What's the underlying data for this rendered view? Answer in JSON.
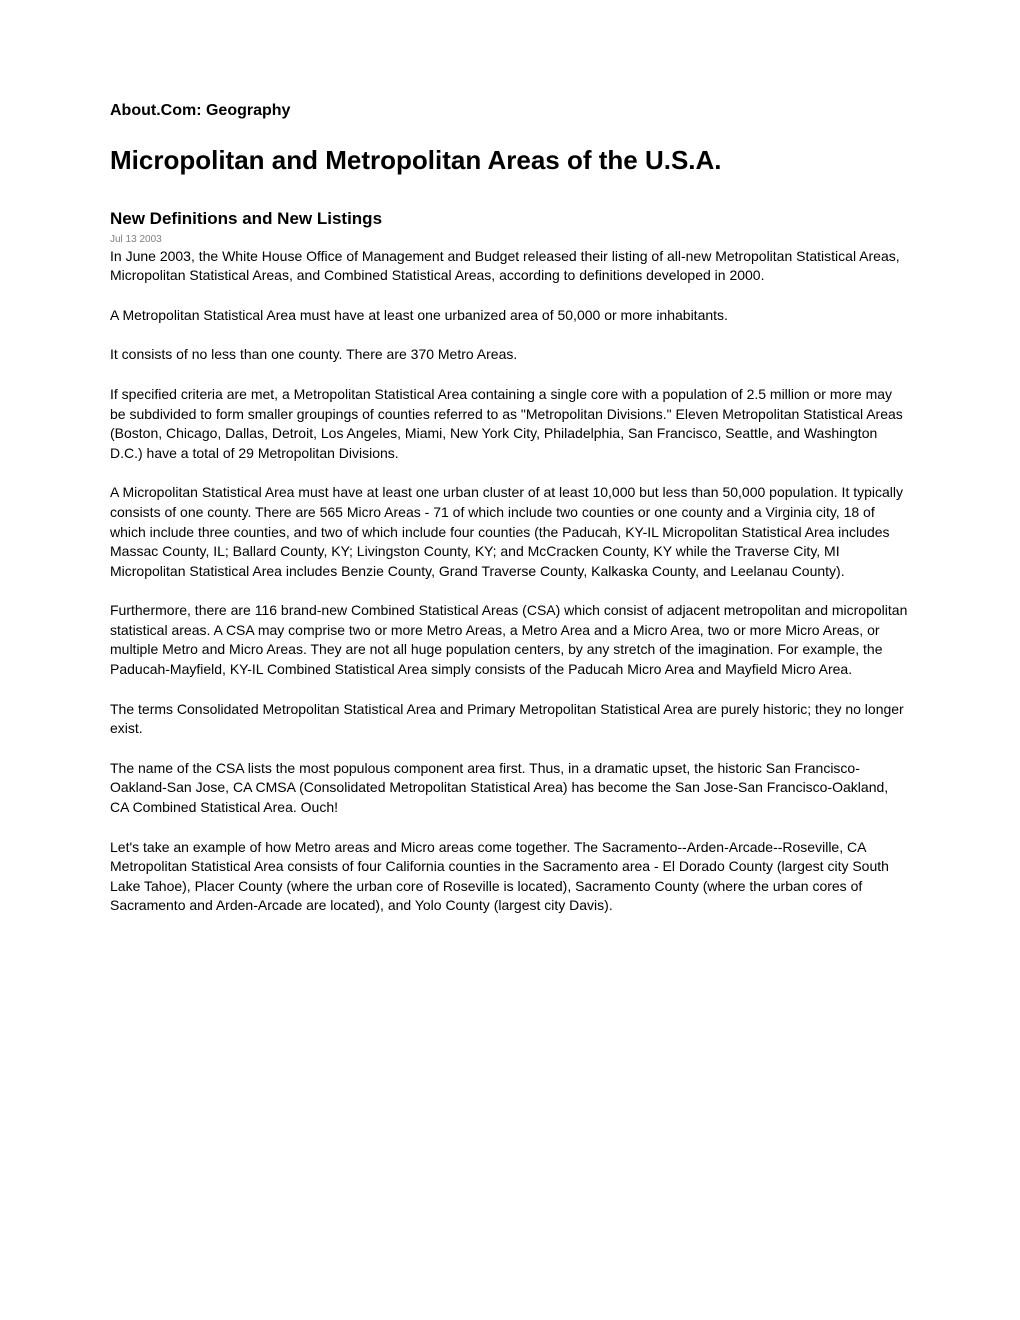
{
  "site_header": "About.Com: Geography",
  "page_title": "Micropolitan and Metropolitan Areas of the U.S.A.",
  "subtitle": "New Definitions and New Listings",
  "date": "Jul 13 2003",
  "paragraphs": {
    "p1": "In June 2003, the White House Office of Management and Budget released their listing of all-new Metropolitan Statistical Areas, Micropolitan Statistical Areas, and Combined Statistical Areas, according to definitions developed in 2000.",
    "p2": "A Metropolitan Statistical Area must have at least one urbanized area of 50,000 or more inhabitants.",
    "p3": "It consists of no less than one county. There are 370 Metro Areas.",
    "p4": "If specified criteria are met, a Metropolitan Statistical Area containing a single core with a population of 2.5 million or more may be subdivided to form smaller groupings of counties referred to as \"Metropolitan Divisions.\" Eleven Metropolitan Statistical Areas (Boston, Chicago, Dallas, Detroit, Los Angeles, Miami, New York City, Philadelphia, San Francisco, Seattle, and Washington D.C.) have a total of 29 Metropolitan Divisions.",
    "p5": "A Micropolitan Statistical Area must have at least one urban cluster of at least 10,000 but less than 50,000 population. It typically consists of one county. There are 565 Micro Areas - 71 of which include two counties or one county and a Virginia city, 18 of which include three counties, and two of which include four counties (the Paducah, KY-IL Micropolitan Statistical Area includes Massac County, IL; Ballard County, KY; Livingston County, KY; and McCracken County, KY while the Traverse City, MI Micropolitan Statistical Area includes Benzie County, Grand Traverse County, Kalkaska County, and Leelanau County).",
    "p6": "Furthermore, there are 116 brand-new Combined Statistical Areas (CSA) which consist of adjacent metropolitan and micropolitan statistical areas. A CSA may comprise two or more Metro Areas, a Metro Area and a Micro Area, two or more Micro Areas, or multiple Metro and Micro Areas. They are not all huge population centers, by any stretch of the imagination. For example, the Paducah-Mayfield, KY-IL Combined Statistical Area simply consists of the Paducah Micro Area and Mayfield Micro Area.",
    "p7": "The terms Consolidated Metropolitan Statistical Area and Primary Metropolitan Statistical Area are purely historic; they no longer exist.",
    "p8": "The name of the CSA lists the most populous component area first. Thus, in a dramatic upset, the historic San Francisco-Oakland-San Jose, CA CMSA (Consolidated Metropolitan Statistical Area) has become the San Jose-San Francisco-Oakland, CA Combined Statistical Area. Ouch!",
    "p9": "Let's take an example of how Metro areas and Micro areas come together. The Sacramento--Arden-Arcade--Roseville, CA Metropolitan Statistical Area consists of four California counties in the Sacramento area - El Dorado County (largest city South Lake Tahoe), Placer County (where the urban core of Roseville is located), Sacramento County (where the urban cores of Sacramento and Arden-Arcade are located), and Yolo County (largest city Davis)."
  }
}
